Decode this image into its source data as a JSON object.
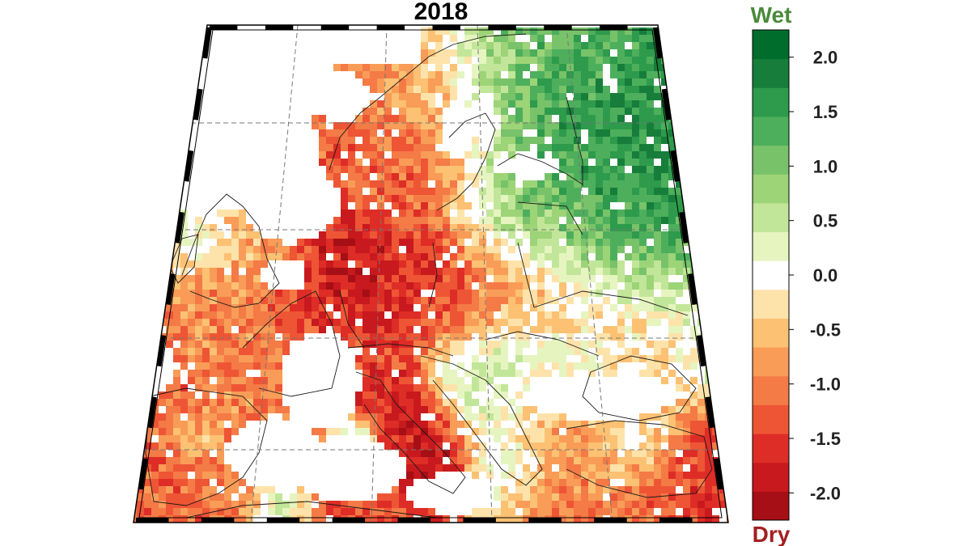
{
  "title": "2018",
  "map": {
    "type": "choropleth-grid",
    "region": "Europe",
    "graticule": "dashed",
    "country_borders": true,
    "colors_dry_to_wet": [
      "#a50f15",
      "#c8191e",
      "#de2d26",
      "#ee5535",
      "#f47a46",
      "#f99c57",
      "#fcc173",
      "#fde3aa",
      "#ffffff",
      "#e6f5c0",
      "#c2e699",
      "#9cd477",
      "#78c26a",
      "#4daf5c",
      "#2e9a4c",
      "#167e3a",
      "#006d2c"
    ]
  },
  "colorbar": {
    "top_label": "Wet",
    "bottom_label": "Dry",
    "top_label_color": "#4a8a3a",
    "bottom_label_color": "#a32020",
    "ticks": [
      "2.0",
      "1.5",
      "1.0",
      "0.5",
      "0.0",
      "-0.5",
      "-1.0",
      "-1.5",
      "-2.0"
    ],
    "range": [
      -2.25,
      2.25
    ],
    "step": 0.25
  }
}
